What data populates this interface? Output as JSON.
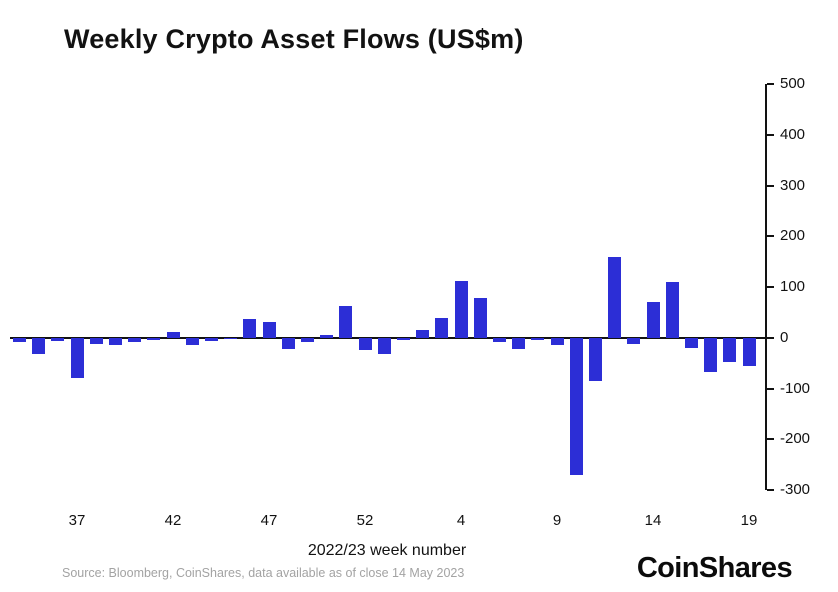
{
  "title": "Weekly Crypto Asset Flows (US$m)",
  "chart_data": {
    "type": "bar",
    "title": "Weekly Crypto Asset Flows (US$m)",
    "xlabel": "2022/23 week number",
    "ylabel": "",
    "ylim": [
      -300,
      500
    ],
    "y_ticks": [
      500,
      400,
      300,
      200,
      100,
      0,
      -100,
      -200,
      -300
    ],
    "weeks": [
      34,
      35,
      36,
      37,
      38,
      39,
      40,
      41,
      42,
      43,
      44,
      45,
      46,
      47,
      48,
      49,
      50,
      51,
      52,
      53,
      1,
      2,
      3,
      4,
      5,
      6,
      7,
      8,
      9,
      10,
      11,
      12,
      13,
      14,
      15,
      16,
      17,
      18,
      19
    ],
    "values": [
      -8,
      -32,
      -6,
      -80,
      -12,
      -14,
      -8,
      -5,
      12,
      -14,
      -6,
      -3,
      37,
      31,
      -22,
      -9,
      5,
      63,
      -25,
      -33,
      -5,
      15,
      38,
      112,
      78,
      -8,
      -22,
      -5,
      -15,
      -270,
      -85,
      160,
      -12,
      70,
      110,
      -20,
      -68,
      -48,
      -55
    ],
    "x_tick_indices": [
      3,
      8,
      13,
      18,
      23,
      28,
      33,
      38
    ],
    "x_tick_labels": [
      "37",
      "42",
      "47",
      "52",
      "4",
      "9",
      "14",
      "19"
    ],
    "bar_color": "#2c2ed6",
    "axis_color": "#121212",
    "legend": "none",
    "grid": false
  },
  "footer": {
    "source": "Source: Bloomberg, CoinShares, data available as of close 14 May 2023",
    "brand": "CoinShares"
  }
}
